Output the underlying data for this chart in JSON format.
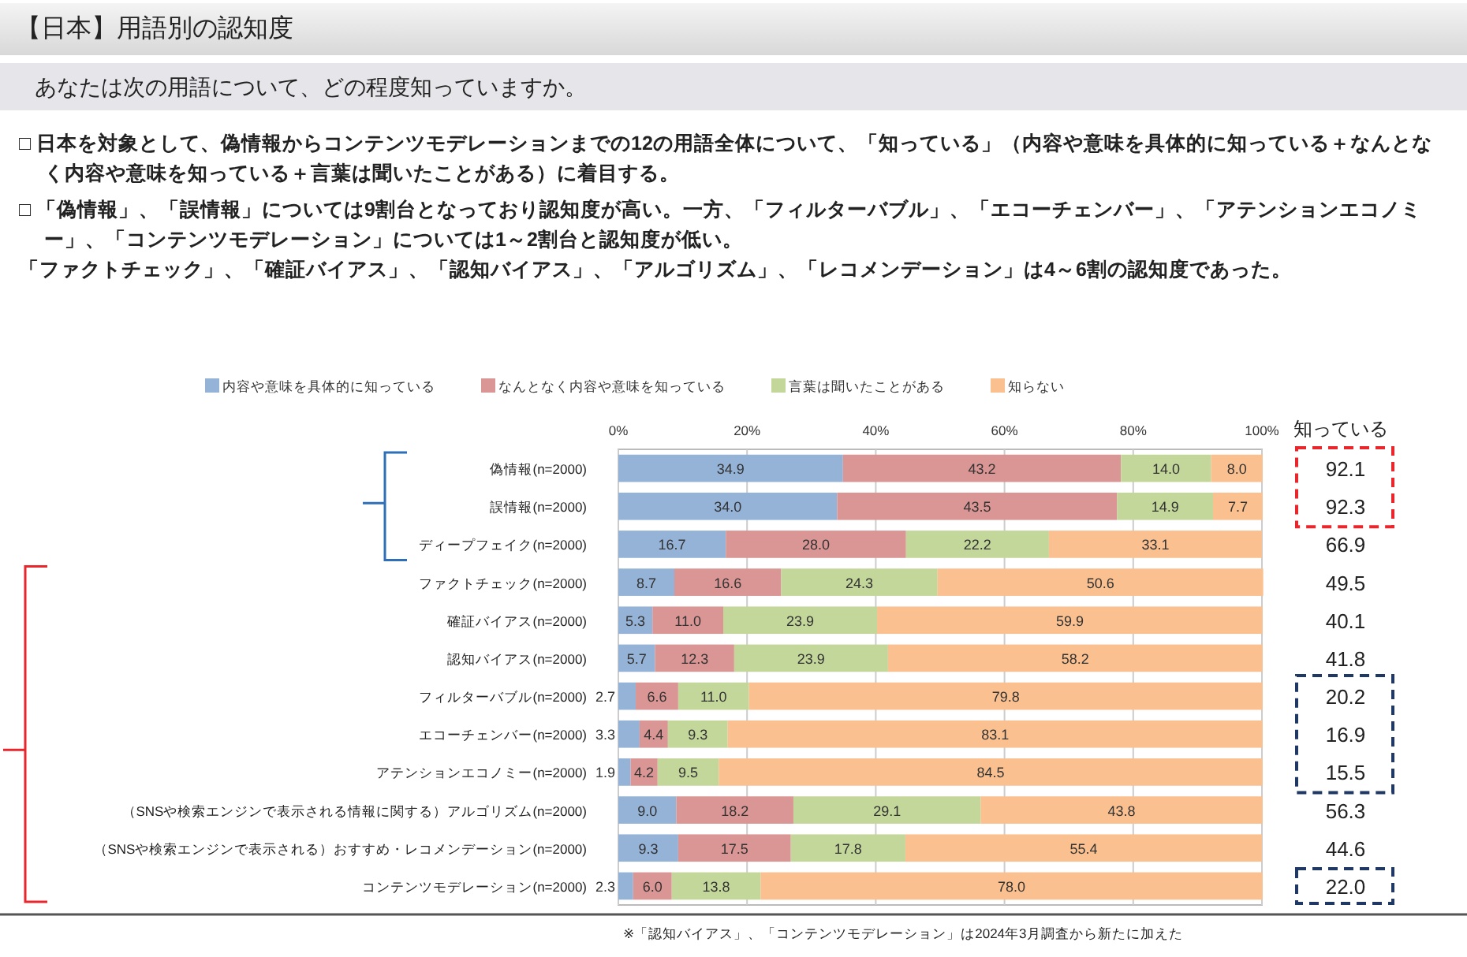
{
  "chart_data": {
    "type": "bar",
    "orientation": "horizontal",
    "stacked": true,
    "title": "【日本】用語別の認知度",
    "subtitle": "あなたは次の用語について、どの程度知っていますか。",
    "categories": [
      "偽情報(n=2000)",
      "誤情報(n=2000)",
      "ディープフェイク(n=2000)",
      "ファクトチェック(n=2000)",
      "確証バイアス(n=2000)",
      "認知バイアス(n=2000)",
      "フィルターバブル(n=2000)",
      "エコーチェンバー(n=2000)",
      "アテンションエコノミー(n=2000)",
      "（SNSや検索エンジンで表示される情報に関する）アルゴリズム(n=2000)",
      "（SNSや検索エンジンで表示される）おすすめ・レコメンデーション(n=2000)",
      "コンテンツモデレーション(n=2000)"
    ],
    "series": [
      {
        "name": "内容や意味を具体的に知っている",
        "color": "#95b3d7",
        "values": [
          34.9,
          34.0,
          16.7,
          8.7,
          5.3,
          5.7,
          2.7,
          3.3,
          1.9,
          9.0,
          9.3,
          2.3
        ],
        "value_labels": [
          "34.9",
          "34.0",
          "16.7",
          "8.7",
          "5.3",
          "5.7",
          "2.7",
          "3.3",
          "1.9",
          "9.0",
          "9.3",
          "2.3"
        ]
      },
      {
        "name": "なんとなく内容や意味を知っている",
        "color": "#da9694",
        "values": [
          43.2,
          43.5,
          28.0,
          16.6,
          11.0,
          12.3,
          6.6,
          4.4,
          4.2,
          18.2,
          17.5,
          6.0
        ],
        "value_labels": [
          "43.2",
          "43.5",
          "28.0",
          "16.6",
          "11.0",
          "12.3",
          "6.6",
          "4.4",
          "4.2",
          "18.2",
          "17.5",
          "6.0"
        ]
      },
      {
        "name": "言葉は聞いたことがある",
        "color": "#c4d79b",
        "values": [
          14.0,
          14.9,
          22.2,
          24.3,
          23.9,
          23.9,
          11.0,
          9.3,
          9.5,
          29.1,
          17.8,
          13.8
        ],
        "value_labels": [
          "14.0",
          "14.9",
          "22.2",
          "24.3",
          "23.9",
          "23.9",
          "11.0",
          "9.3",
          "9.5",
          "29.1",
          "17.8",
          "13.8"
        ]
      },
      {
        "name": "知らない",
        "color": "#fac090",
        "values": [
          8.0,
          7.7,
          33.1,
          50.6,
          59.9,
          58.2,
          79.8,
          83.1,
          84.5,
          43.8,
          55.4,
          78.0
        ],
        "value_labels": [
          "8.0",
          "7.7",
          "33.1",
          "50.6",
          "59.9",
          "58.2",
          "79.8",
          "83.1",
          "84.5",
          "43.8",
          "55.4",
          "78.0"
        ]
      }
    ],
    "xlim": [
      0,
      100
    ],
    "xticks": [
      {
        "value": 0,
        "label": "0%"
      },
      {
        "value": 20,
        "label": "20%"
      },
      {
        "value": 40,
        "label": "40%"
      },
      {
        "value": 60,
        "label": "60%"
      },
      {
        "value": 80,
        "label": "80%"
      },
      {
        "value": 100,
        "label": "100%"
      }
    ],
    "grid": "x",
    "legend": "top",
    "annotations": [
      "□ 日本を対象として、偽情報からコンテンツモデレーションまでの12の用語全体について、「知っている」（内容や意味を具体的に知っている＋なんとなく内容や意味を知っている＋言葉は聞いたことがある）に着目する。",
      "□ 「偽情報」、「誤情報」については9割台となっており認知度が高い。一方、「フィルターバブル」、「エコーチェンバー」、「アテンションエコノミー」、「コンテンツモデレーション」については1～2割台と認知度が低い。",
      "「ファクトチェック」、「確証バイアス」、「認知バイアス」、「アルゴリズム」、「レコメンデーション」は4～6割の認知度であった。",
      "知っている",
      "92.1",
      "92.3",
      "66.9",
      "49.5",
      "40.1",
      "41.8",
      "20.2",
      "16.9",
      "15.5",
      "56.3",
      "44.6",
      "22.0",
      "※「認知バイアス」、「コンテンツモデレーション」は2024年3月調査から新たに加えた"
    ]
  }
}
